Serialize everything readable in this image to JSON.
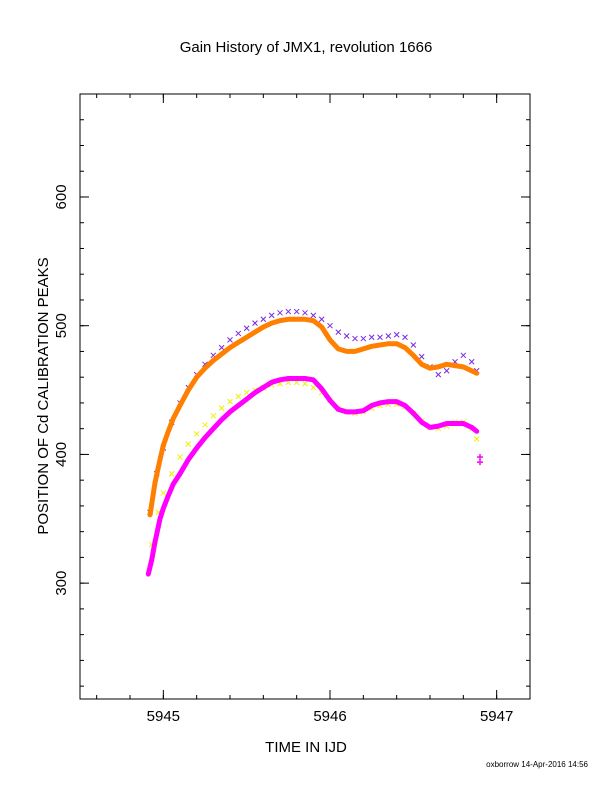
{
  "chart_data": {
    "type": "scatter",
    "title": "Gain History of JMX1, revolution 1666",
    "xlabel": "TIME IN IJD",
    "ylabel": "POSITION OF Cd CALIBRATION PEAKS",
    "xlim": [
      5944.5,
      5947.2
    ],
    "ylim": [
      210,
      680
    ],
    "xticks": [
      5945,
      5946,
      5947
    ],
    "yticks": [
      300,
      400,
      500,
      600
    ],
    "grid": false,
    "footer": "oxborrow 14-Apr-2016 14:56",
    "series": [
      {
        "style": "scatter-x",
        "color": "#7a2ae0",
        "x": [
          5944.92,
          5944.96,
          5945.0,
          5945.05,
          5945.1,
          5945.15,
          5945.2,
          5945.25,
          5945.3,
          5945.35,
          5945.4,
          5945.45,
          5945.5,
          5945.55,
          5945.6,
          5945.65,
          5945.7,
          5945.75,
          5945.8,
          5945.85,
          5945.9,
          5945.95,
          5946.0,
          5946.05,
          5946.1,
          5946.15,
          5946.2,
          5946.25,
          5946.3,
          5946.35,
          5946.4,
          5946.45,
          5946.5,
          5946.55,
          5946.6,
          5946.65,
          5946.7,
          5946.75,
          5946.8,
          5946.85,
          5946.88
        ],
        "y": [
          355,
          385,
          405,
          425,
          440,
          452,
          462,
          470,
          477,
          483,
          489,
          494,
          498,
          502,
          505,
          508,
          510,
          511,
          511,
          510,
          508,
          505,
          500,
          495,
          492,
          490,
          490,
          491,
          491,
          492,
          493,
          491,
          485,
          476,
          468,
          462,
          465,
          472,
          477,
          472,
          465
        ]
      },
      {
        "style": "scatter-x",
        "color": "#f0f000",
        "x": [
          5944.93,
          5944.97,
          5945.0,
          5945.05,
          5945.1,
          5945.15,
          5945.2,
          5945.25,
          5945.3,
          5945.35,
          5945.4,
          5945.45,
          5945.5,
          5945.55,
          5945.6,
          5945.65,
          5945.7,
          5945.75,
          5945.8,
          5945.85,
          5945.9,
          5945.95,
          5946.0,
          5946.05,
          5946.1,
          5946.15,
          5946.2,
          5946.25,
          5946.3,
          5946.35,
          5946.4,
          5946.45,
          5946.5,
          5946.55,
          5946.6,
          5946.65,
          5946.7,
          5946.75,
          5946.8,
          5946.85,
          5946.88
        ],
        "y": [
          330,
          355,
          370,
          385,
          398,
          408,
          416,
          423,
          430,
          436,
          441,
          445,
          448,
          450,
          452,
          454,
          455,
          456,
          456,
          455,
          452,
          448,
          442,
          436,
          433,
          432,
          433,
          436,
          438,
          439,
          439,
          437,
          432,
          426,
          421,
          420,
          422,
          425,
          425,
          420,
          412
        ]
      },
      {
        "style": "line",
        "color": "#ff7f00",
        "x": [
          5944.92,
          5944.95,
          5944.98,
          5945.0,
          5945.03,
          5945.06,
          5945.1,
          5945.15,
          5945.2,
          5945.25,
          5945.3,
          5945.35,
          5945.4,
          5945.45,
          5945.5,
          5945.55,
          5945.6,
          5945.65,
          5945.7,
          5945.75,
          5945.8,
          5945.85,
          5945.9,
          5945.95,
          5946.0,
          5946.05,
          5946.1,
          5946.15,
          5946.2,
          5946.25,
          5946.3,
          5946.35,
          5946.4,
          5946.45,
          5946.5,
          5946.55,
          5946.6,
          5946.65,
          5946.7,
          5946.75,
          5946.8,
          5946.85,
          5946.88
        ],
        "y": [
          353,
          378,
          396,
          407,
          418,
          428,
          438,
          450,
          460,
          467,
          473,
          478,
          483,
          487,
          491,
          495,
          499,
          502,
          504,
          505,
          505,
          505,
          504,
          499,
          489,
          482,
          480,
          480,
          482,
          484,
          485,
          486,
          486,
          483,
          477,
          470,
          467,
          468,
          470,
          469,
          468,
          465,
          463
        ]
      },
      {
        "style": "line",
        "color": "#ff00ff",
        "x": [
          5944.91,
          5944.93,
          5944.95,
          5944.98,
          5945.0,
          5945.03,
          5945.06,
          5945.1,
          5945.15,
          5945.2,
          5945.25,
          5945.3,
          5945.35,
          5945.4,
          5945.45,
          5945.5,
          5945.55,
          5945.6,
          5945.65,
          5945.7,
          5945.75,
          5945.8,
          5945.85,
          5945.9,
          5945.95,
          5946.0,
          5946.05,
          5946.1,
          5946.15,
          5946.2,
          5946.25,
          5946.3,
          5946.35,
          5946.4,
          5946.45,
          5946.5,
          5946.55,
          5946.6,
          5946.65,
          5946.7,
          5946.75,
          5946.8,
          5946.85,
          5946.88
        ],
        "y": [
          307,
          318,
          332,
          350,
          358,
          368,
          377,
          385,
          396,
          405,
          413,
          420,
          427,
          433,
          438,
          443,
          448,
          452,
          456,
          458,
          459,
          459,
          459,
          458,
          451,
          442,
          435,
          433,
          433,
          434,
          438,
          440,
          441,
          441,
          438,
          432,
          425,
          421,
          422,
          424,
          424,
          424,
          421,
          418
        ]
      },
      {
        "style": "scatter-plus",
        "color": "#ff00ff",
        "x": [
          5946.9,
          5946.9
        ],
        "y": [
          398,
          394
        ]
      }
    ]
  }
}
